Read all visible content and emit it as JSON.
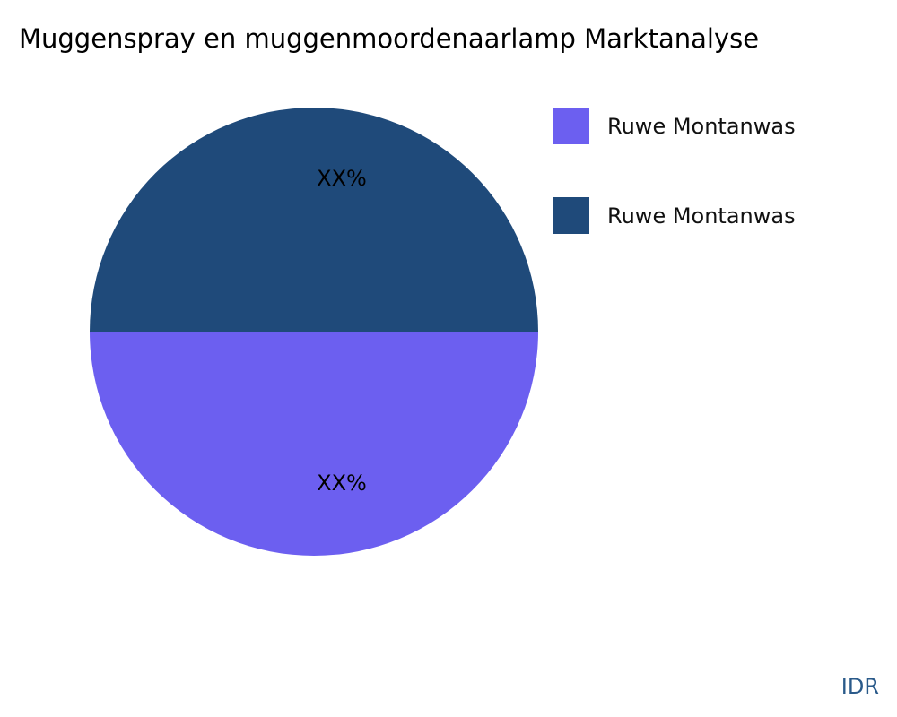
{
  "chart_data": {
    "type": "pie",
    "title": "Muggenspray en muggenmoordenaarlamp Marktanalyse",
    "slices": [
      {
        "name": "Ruwe Montanwas",
        "value": 50,
        "label": "XX%",
        "color": "#6c5ff0"
      },
      {
        "name": "Ruwe Montanwas",
        "value": 50,
        "label": "XX%",
        "color": "#1f4a7a"
      }
    ],
    "legend_position": "right"
  },
  "brand": "IDR"
}
